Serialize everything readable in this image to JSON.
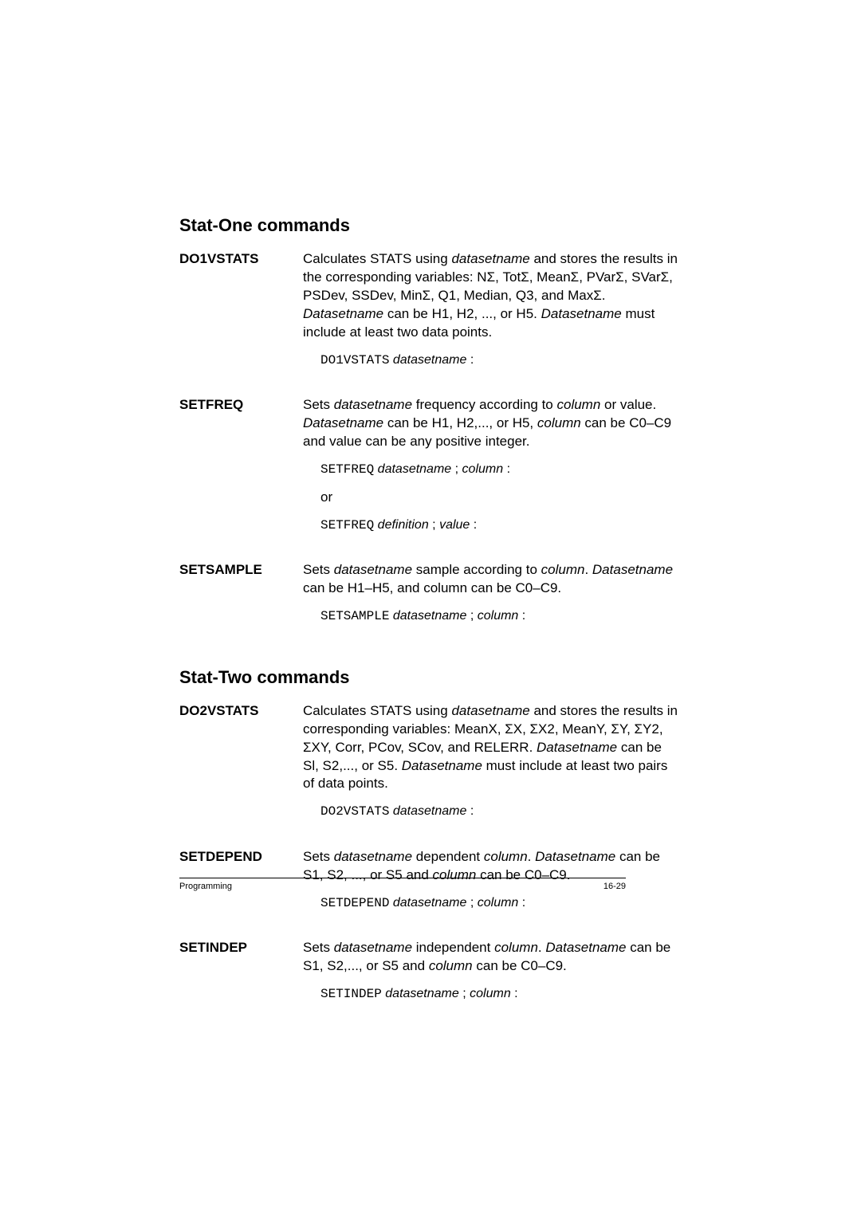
{
  "page": {
    "footer_left": "Programming",
    "page_number": "16-29"
  },
  "statOne": {
    "title": "Stat-One commands",
    "do1vstats": {
      "term": "DO1VSTATS",
      "desc_pre": "Calculates STATS using ",
      "desc_ital1": "datasetname",
      "desc_mid": " and stores the results in the corresponding variables: NΣ, TotΣ, MeanΣ, PVarΣ, SVarΣ, PSDev, SSDev, MinΣ, Q1, Median, Q3, and MaxΣ. ",
      "desc_ital2": "Datasetname",
      "desc_mid2": " can be H1, H2, ..., or H5. ",
      "desc_ital3": "Datasetname",
      "desc_end": " must include at least two data points.",
      "syntax_cmd": "DO1VSTATS",
      "syntax_arg": "datasetname",
      "colon": ":"
    },
    "setfreq": {
      "term": "SETFREQ",
      "desc_pre": "Sets ",
      "desc_ital1": "datasetname",
      "desc_mid1": " frequency according to ",
      "desc_ital2": "column",
      "desc_mid2": " or value. ",
      "desc_ital3": "Datasetname",
      "desc_mid3": " can be H1, H2,..., or H5, ",
      "desc_ital4": "column",
      "desc_end": " can be C0–C9 and value can be any positive integer.",
      "syntax1_cmd": "SETFREQ",
      "syntax1_a1": "datasetname",
      "semi": ";",
      "syntax1_a2": "column",
      "or": "or",
      "syntax2_cmd": "SETFREQ",
      "syntax2_a1": "definition",
      "syntax2_a2": "value",
      "colon": ":"
    },
    "setsample": {
      "term": "SETSAMPLE",
      "desc_pre": "Sets ",
      "desc_ital1": "datasetname",
      "desc_mid1": " sample according to ",
      "desc_ital2": "column",
      "desc_mid2": ". ",
      "desc_ital3": "Datasetname",
      "desc_end": " can be H1–H5, and column can be C0–C9.",
      "syntax_cmd": "SETSAMPLE",
      "syntax_a1": "datasetname",
      "semi": ";",
      "syntax_a2": "column",
      "colon": ":"
    }
  },
  "statTwo": {
    "title": "Stat-Two commands",
    "do2vstats": {
      "term": "DO2VSTATS",
      "desc_pre": "Calculates STATS using ",
      "desc_ital1": "datasetname",
      "desc_mid": " and stores the results in corresponding variables: MeanX, ΣX, ΣX2, MeanY, ΣY, ΣY2, ΣXY, Corr, PCov, SCov, and RELERR. ",
      "desc_ital2": "Datasetname",
      "desc_mid2": " can be Sl, S2,..., or S5. ",
      "desc_ital3": "Datasetname",
      "desc_end": " must include at least two pairs of data points.",
      "syntax_cmd": "DO2VSTATS",
      "syntax_arg": "datasetname",
      "colon": ":"
    },
    "setdepend": {
      "term": "SETDEPEND",
      "desc_pre": "Sets ",
      "desc_ital1": "datasetname",
      "desc_mid1": " dependent ",
      "desc_ital2": "column",
      "desc_mid2": ". ",
      "desc_ital3": "Datasetname",
      "desc_mid3": " can be S1, S2, ..., or S5 and ",
      "desc_ital4": "column",
      "desc_end": " can be C0–C9.",
      "syntax_cmd": "SETDEPEND",
      "syntax_a1": "datasetname",
      "semi": ";",
      "syntax_a2": "column",
      "colon": ":"
    },
    "setindep": {
      "term": "SETINDEP",
      "desc_pre": "Sets ",
      "desc_ital1": "datasetname",
      "desc_mid1": " independent ",
      "desc_ital2": "column",
      "desc_mid2": ". ",
      "desc_ital3": "Datasetname",
      "desc_mid3": " can be S1, S2,..., or S5 and ",
      "desc_ital4": "column",
      "desc_end": " can be C0–C9.",
      "syntax_cmd": "SETINDEP",
      "syntax_a1": "datasetname",
      "semi": ";",
      "syntax_a2": "column",
      "colon": ":"
    }
  }
}
